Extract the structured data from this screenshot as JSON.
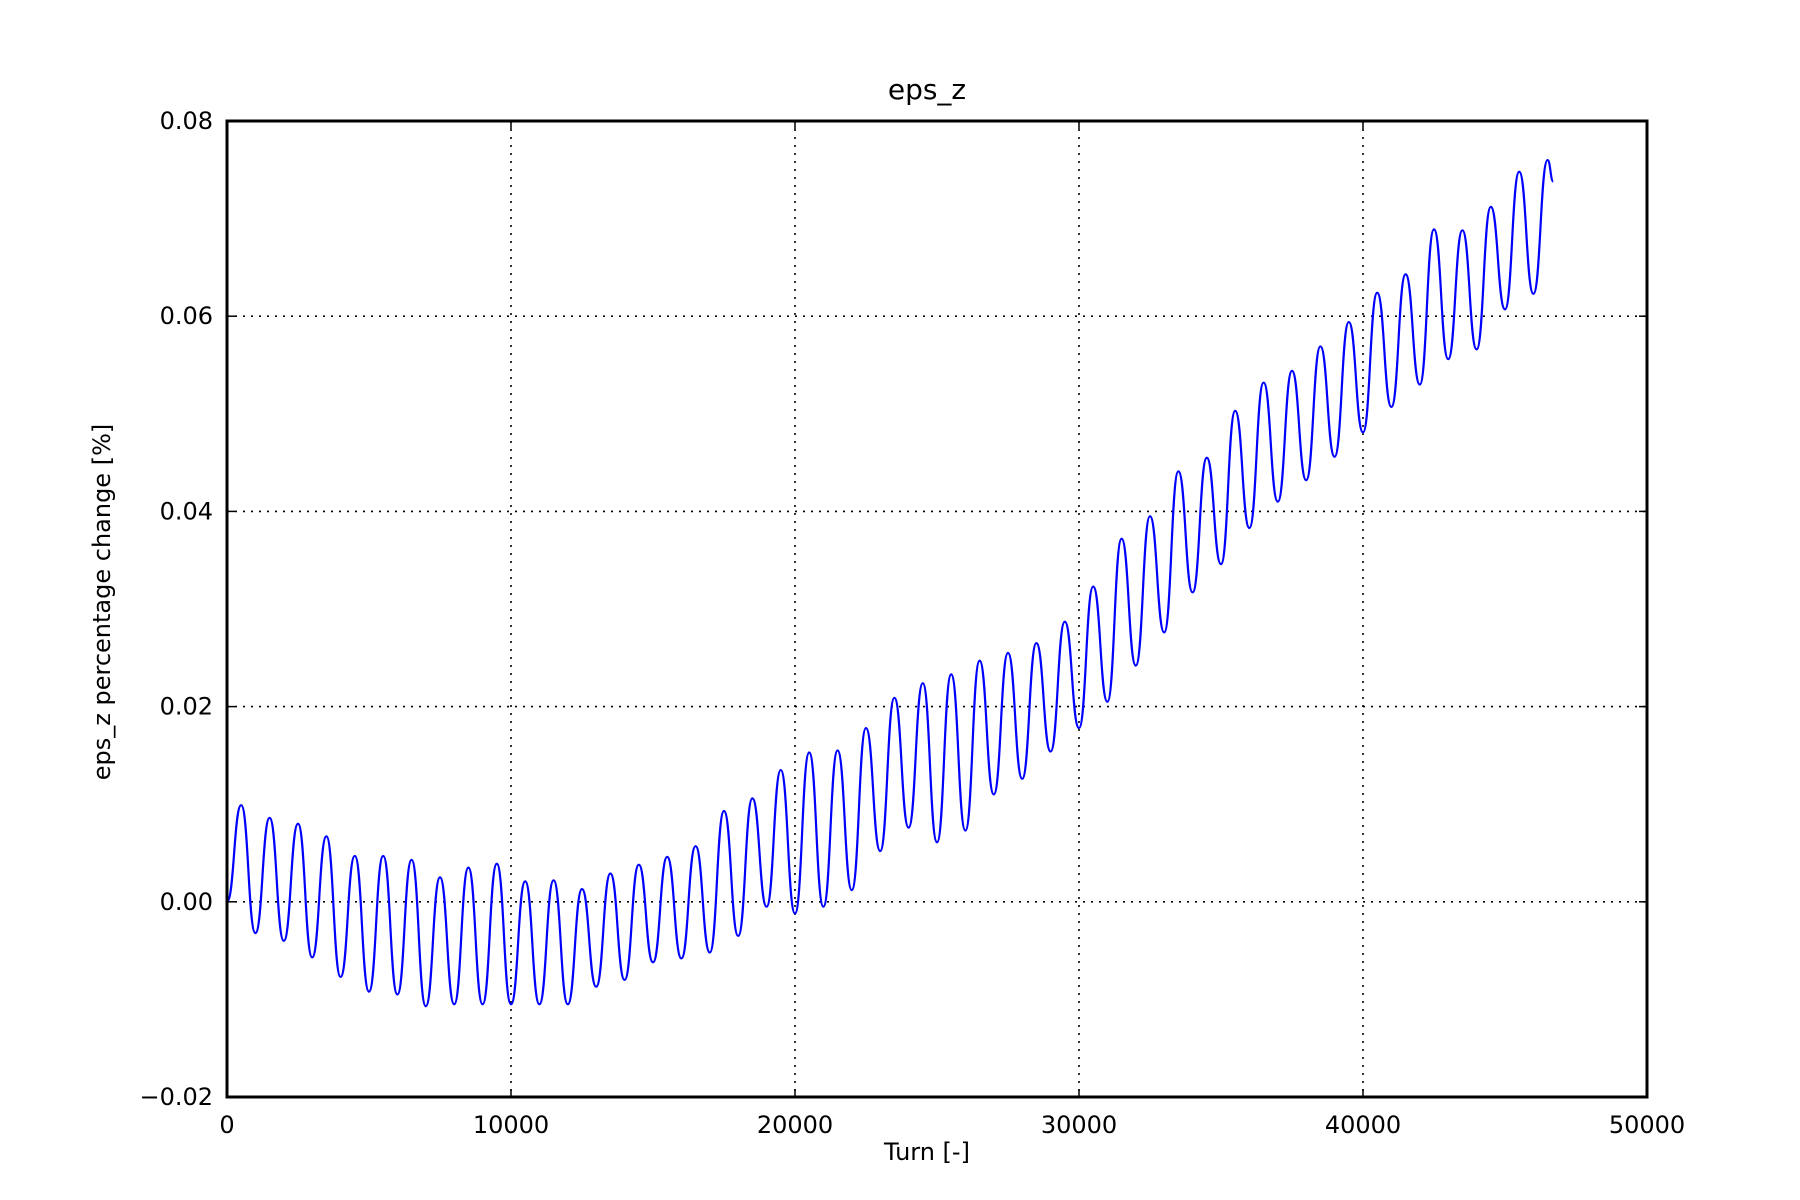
{
  "chart_data": {
    "type": "line",
    "title": "eps_z",
    "xlabel": "Turn [-]",
    "ylabel": "eps_z percentage change [%]",
    "xlim": [
      0,
      50000
    ],
    "ylim": [
      -0.02,
      0.08
    ],
    "xticks": [
      0,
      10000,
      20000,
      30000,
      40000,
      50000
    ],
    "xtick_labels": [
      "0",
      "10000",
      "20000",
      "30000",
      "40000",
      "50000"
    ],
    "yticks": [
      -0.02,
      0,
      0.02,
      0.04,
      0.06,
      0.08
    ],
    "ytick_labels": [
      "−0.02",
      "0.00",
      "0.02",
      "0.04",
      "0.06",
      "0.08"
    ],
    "grid": true,
    "legend": "none",
    "series": [
      {
        "color": "#0000ff",
        "x": [
          0,
          500,
          1000,
          1500,
          2000,
          2500,
          3000,
          3500,
          4000,
          4500,
          5000,
          5500,
          6000,
          6500,
          7000,
          7500,
          8000,
          8500,
          9000,
          9500,
          10000,
          10500,
          11000,
          11500,
          12000,
          12500,
          13000,
          13500,
          14000,
          14500,
          15000,
          15500,
          16000,
          16500,
          17000,
          17500,
          18000,
          18500,
          19000,
          19500,
          20000,
          20500,
          21000,
          21500,
          22000,
          22500,
          23000,
          23500,
          24000,
          24500,
          25000,
          25500,
          26000,
          26500,
          27000,
          27500,
          28000,
          28500,
          29000,
          29500,
          30000,
          30500,
          31000,
          31500,
          32000,
          32500,
          33000,
          33500,
          34000,
          34500,
          35000,
          35500,
          36000,
          36500,
          37000,
          37500,
          38000,
          38500,
          39000,
          39500,
          40000,
          40500,
          41000,
          41500,
          42000,
          42500,
          43000,
          43500,
          44000,
          44500,
          45000,
          45500,
          46000,
          46500,
          46700
        ],
        "y": [
          0.0,
          0.0099,
          -0.0032,
          0.0086,
          -0.004,
          0.008,
          -0.0057,
          0.0067,
          -0.0077,
          0.0047,
          -0.0092,
          0.0047,
          -0.0095,
          0.0043,
          -0.0107,
          0.0025,
          -0.0105,
          0.0035,
          -0.0105,
          0.0039,
          -0.0105,
          0.0021,
          -0.0105,
          0.0022,
          -0.0105,
          0.0013,
          -0.0087,
          0.0029,
          -0.008,
          0.0038,
          -0.0062,
          0.0046,
          -0.0058,
          0.0057,
          -0.0052,
          0.0093,
          -0.0035,
          0.0106,
          -0.0005,
          0.0135,
          -0.0012,
          0.0153,
          -0.0005,
          0.0155,
          0.0012,
          0.0178,
          0.0052,
          0.0209,
          0.0076,
          0.0224,
          0.0061,
          0.0233,
          0.0073,
          0.0247,
          0.011,
          0.0255,
          0.0126,
          0.0265,
          0.0154,
          0.0287,
          0.0178,
          0.0323,
          0.0205,
          0.0372,
          0.0242,
          0.0395,
          0.0276,
          0.0441,
          0.0317,
          0.0455,
          0.0346,
          0.0503,
          0.0383,
          0.0532,
          0.041,
          0.0544,
          0.0432,
          0.0569,
          0.0456,
          0.0594,
          0.0481,
          0.0624,
          0.0507,
          0.0643,
          0.053,
          0.0689,
          0.0556,
          0.0688,
          0.0566,
          0.0712,
          0.0607,
          0.0748,
          0.0623,
          0.076,
          0.0738
        ]
      }
    ]
  }
}
